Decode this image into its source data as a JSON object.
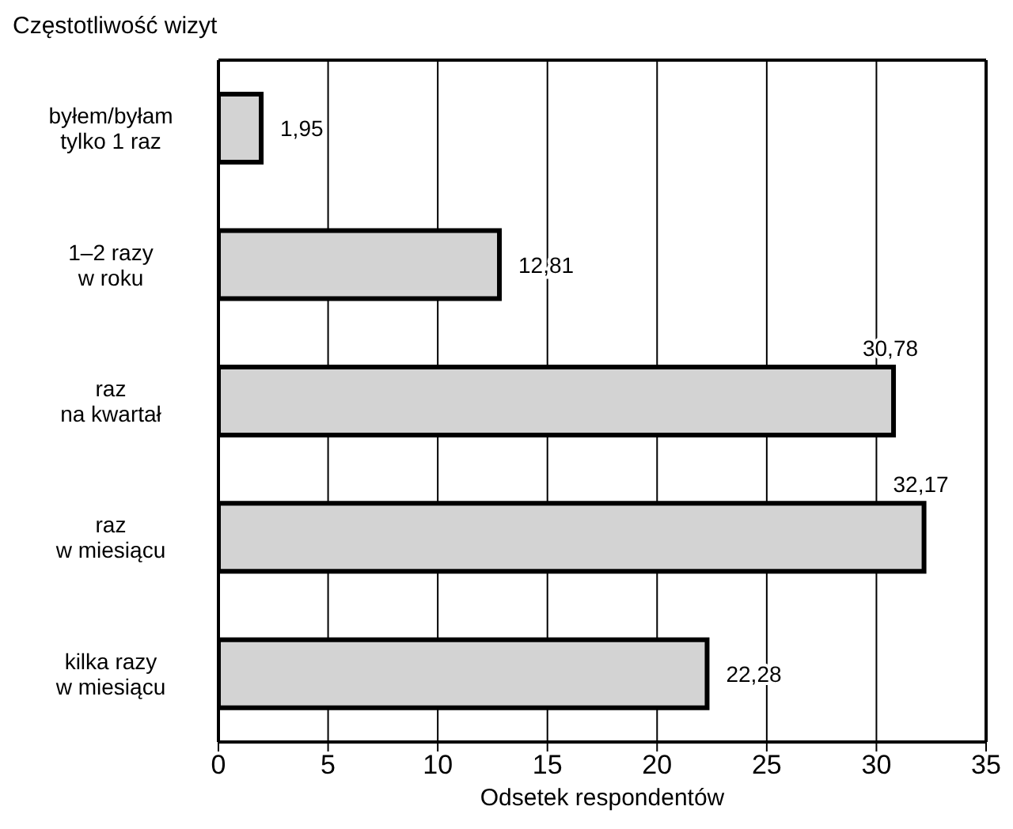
{
  "chart_data": {
    "type": "bar",
    "orientation": "horizontal",
    "title": "Częstotliwość wizyt",
    "xlabel": "Odsetek respondentów",
    "categories": [
      "byłem/byłam\ntylko 1 raz",
      "1–2 razy\nw roku",
      "raz\nna kwartał",
      "raz\nw miesiącu",
      "kilka razy\nw miesiącu"
    ],
    "values": [
      1.95,
      12.81,
      30.78,
      32.17,
      22.28
    ],
    "value_labels": [
      "1,95",
      "12,81",
      "30,78",
      "32,17",
      "22,28"
    ],
    "color": "#d3d3d3",
    "xlim": [
      0,
      35
    ],
    "xticks": [
      0,
      5,
      10,
      15,
      20,
      25,
      30,
      35
    ],
    "grid": "x",
    "legend": false
  }
}
